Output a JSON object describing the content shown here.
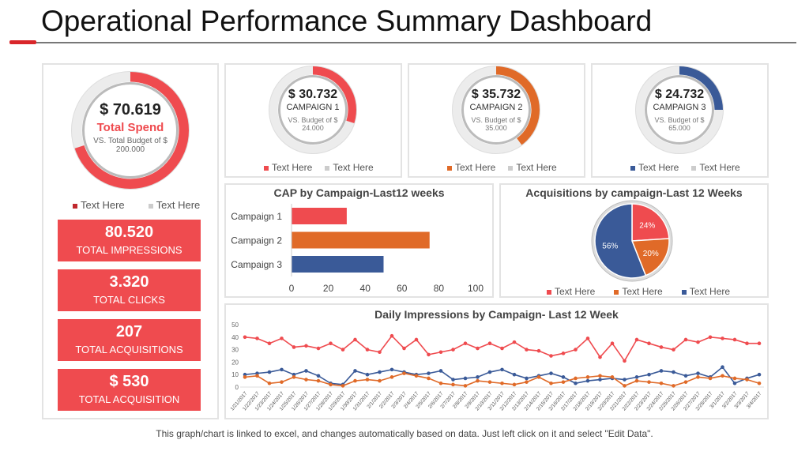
{
  "title": "Operational Performance Summary Dashboard",
  "colors": {
    "red": "#ef4b4f",
    "orange": "#e06a28",
    "blue": "#3a5a98",
    "gray": "#e8e8e8"
  },
  "total": {
    "value": "$ 70.619",
    "label": "Total Spend",
    "budget_line1": "VS.  Total Budget of $",
    "budget_line2": "200.000",
    "fill_fraction": 0.7,
    "legend": [
      "Text Here",
      "Text Here"
    ]
  },
  "kpis": [
    {
      "value": "80.520",
      "label": "TOTAL IMPRESSIONS"
    },
    {
      "value": "3.320",
      "label": "TOTAL CLICKS"
    },
    {
      "value": "207",
      "label": "TOTAL ACQUISITIONS"
    },
    {
      "value": "$ 530",
      "label": "TOTAL ACQUISITION"
    }
  ],
  "campaigns": [
    {
      "value": "$ 30.732",
      "label": "CAMPAIGN  1",
      "budget_line1": "VS.  Budget of $",
      "budget_line2": "24.000",
      "fill_fraction": 0.3,
      "color": "#ef4b4f",
      "legend": [
        "Text Here",
        "Text Here"
      ]
    },
    {
      "value": "$ 35.732",
      "label": "CAMPAIGN  2",
      "budget_line1": "VS.  Budget of $",
      "budget_line2": "35.000",
      "fill_fraction": 0.4,
      "color": "#e06a28",
      "legend": [
        "Text Here",
        "Text Here"
      ]
    },
    {
      "value": "$ 24.732",
      "label": "CAMPAIGN  3",
      "budget_line1": "VS.  Budget of $",
      "budget_line2": "65.000",
      "fill_fraction": 0.25,
      "color": "#3a5a98",
      "legend": [
        "Text Here",
        "Text Here"
      ]
    }
  ],
  "chart_data": [
    {
      "type": "bar",
      "title": "CAP by Campaign-Last12 weeks",
      "orientation": "horizontal",
      "categories": [
        "Campaign 1",
        "Campaign 2",
        "Campaign 3"
      ],
      "values": [
        30,
        75,
        50
      ],
      "colors": [
        "#ef4b4f",
        "#e06a28",
        "#3a5a98"
      ],
      "xlim": [
        0,
        100
      ],
      "xticks": [
        "0",
        "20",
        "40",
        "60",
        "80",
        "100"
      ],
      "grid": false
    },
    {
      "type": "pie",
      "title": "Acquisitions by campaign-Last 12 Weeks",
      "values": [
        24,
        20,
        56
      ],
      "labels": [
        "24%",
        "20%",
        "56%"
      ],
      "colors": [
        "#ef4b4f",
        "#e06a28",
        "#3a5a98"
      ],
      "legend": [
        "Text Here",
        "Text Here",
        "Text Here"
      ],
      "legend_position": "bottom"
    },
    {
      "type": "line",
      "title": "Daily Impressions by Campaign- Last 12 Week",
      "ylim": [
        0,
        50
      ],
      "yticks": [
        "0",
        "10",
        "20",
        "30",
        "40",
        "50"
      ],
      "grid": false,
      "x": [
        "1/21/2017",
        "1/22/2017",
        "1/23/2017",
        "1/24/2017",
        "1/25/2017",
        "1/26/2017",
        "1/27/2017",
        "1/28/2017",
        "1/29/2017",
        "1/30/2017",
        "1/31/2017",
        "2/1/2017",
        "2/2/2017",
        "2/3/2017",
        "2/4/2017",
        "2/5/2017",
        "2/6/2017",
        "2/7/2017",
        "2/8/2017",
        "2/9/2017",
        "2/10/2017",
        "2/11/2017",
        "2/12/2017",
        "2/13/2017",
        "2/14/2017",
        "2/15/2017",
        "2/16/2017",
        "2/17/2017",
        "2/18/2017",
        "2/19/2017",
        "2/20/2017",
        "2/21/2017",
        "2/22/2017",
        "2/23/2017",
        "2/24/2017",
        "2/25/2017",
        "2/26/2017",
        "2/27/2017",
        "2/28/2017",
        "3/1/2017",
        "3/2/2017",
        "3/3/2017",
        "3/4/2017"
      ],
      "series": [
        {
          "color": "#ef4b4f",
          "values": [
            40,
            39,
            35,
            39,
            32,
            33,
            31,
            35,
            30,
            38,
            30,
            28,
            41,
            31,
            38,
            26,
            28,
            30,
            35,
            31,
            35,
            31,
            36,
            30,
            29,
            25,
            27,
            30,
            39,
            24,
            35,
            21,
            38,
            35,
            32,
            30,
            38,
            36,
            40,
            39,
            38,
            35,
            35
          ]
        },
        {
          "color": "#3a5a98",
          "values": [
            10,
            11,
            12,
            14,
            10,
            13,
            9,
            3,
            2,
            13,
            10,
            12,
            14,
            12,
            10,
            11,
            13,
            6,
            7,
            8,
            12,
            14,
            10,
            7,
            9,
            11,
            8,
            3,
            5,
            6,
            7,
            6,
            8,
            10,
            13,
            12,
            9,
            11,
            8,
            16,
            3,
            7,
            10
          ]
        },
        {
          "color": "#e06a28",
          "values": [
            8,
            9,
            3,
            4,
            8,
            6,
            5,
            2,
            1,
            5,
            6,
            5,
            8,
            11,
            9,
            7,
            3,
            2,
            1,
            5,
            4,
            3,
            2,
            4,
            8,
            3,
            4,
            7,
            8,
            9,
            8,
            1,
            5,
            4,
            3,
            1,
            4,
            8,
            7,
            9,
            7,
            6,
            3
          ]
        }
      ]
    }
  ],
  "footer": "This graph/chart is linked to excel, and changes automatically based on data. Just left click on it and select \"Edit Data\"."
}
